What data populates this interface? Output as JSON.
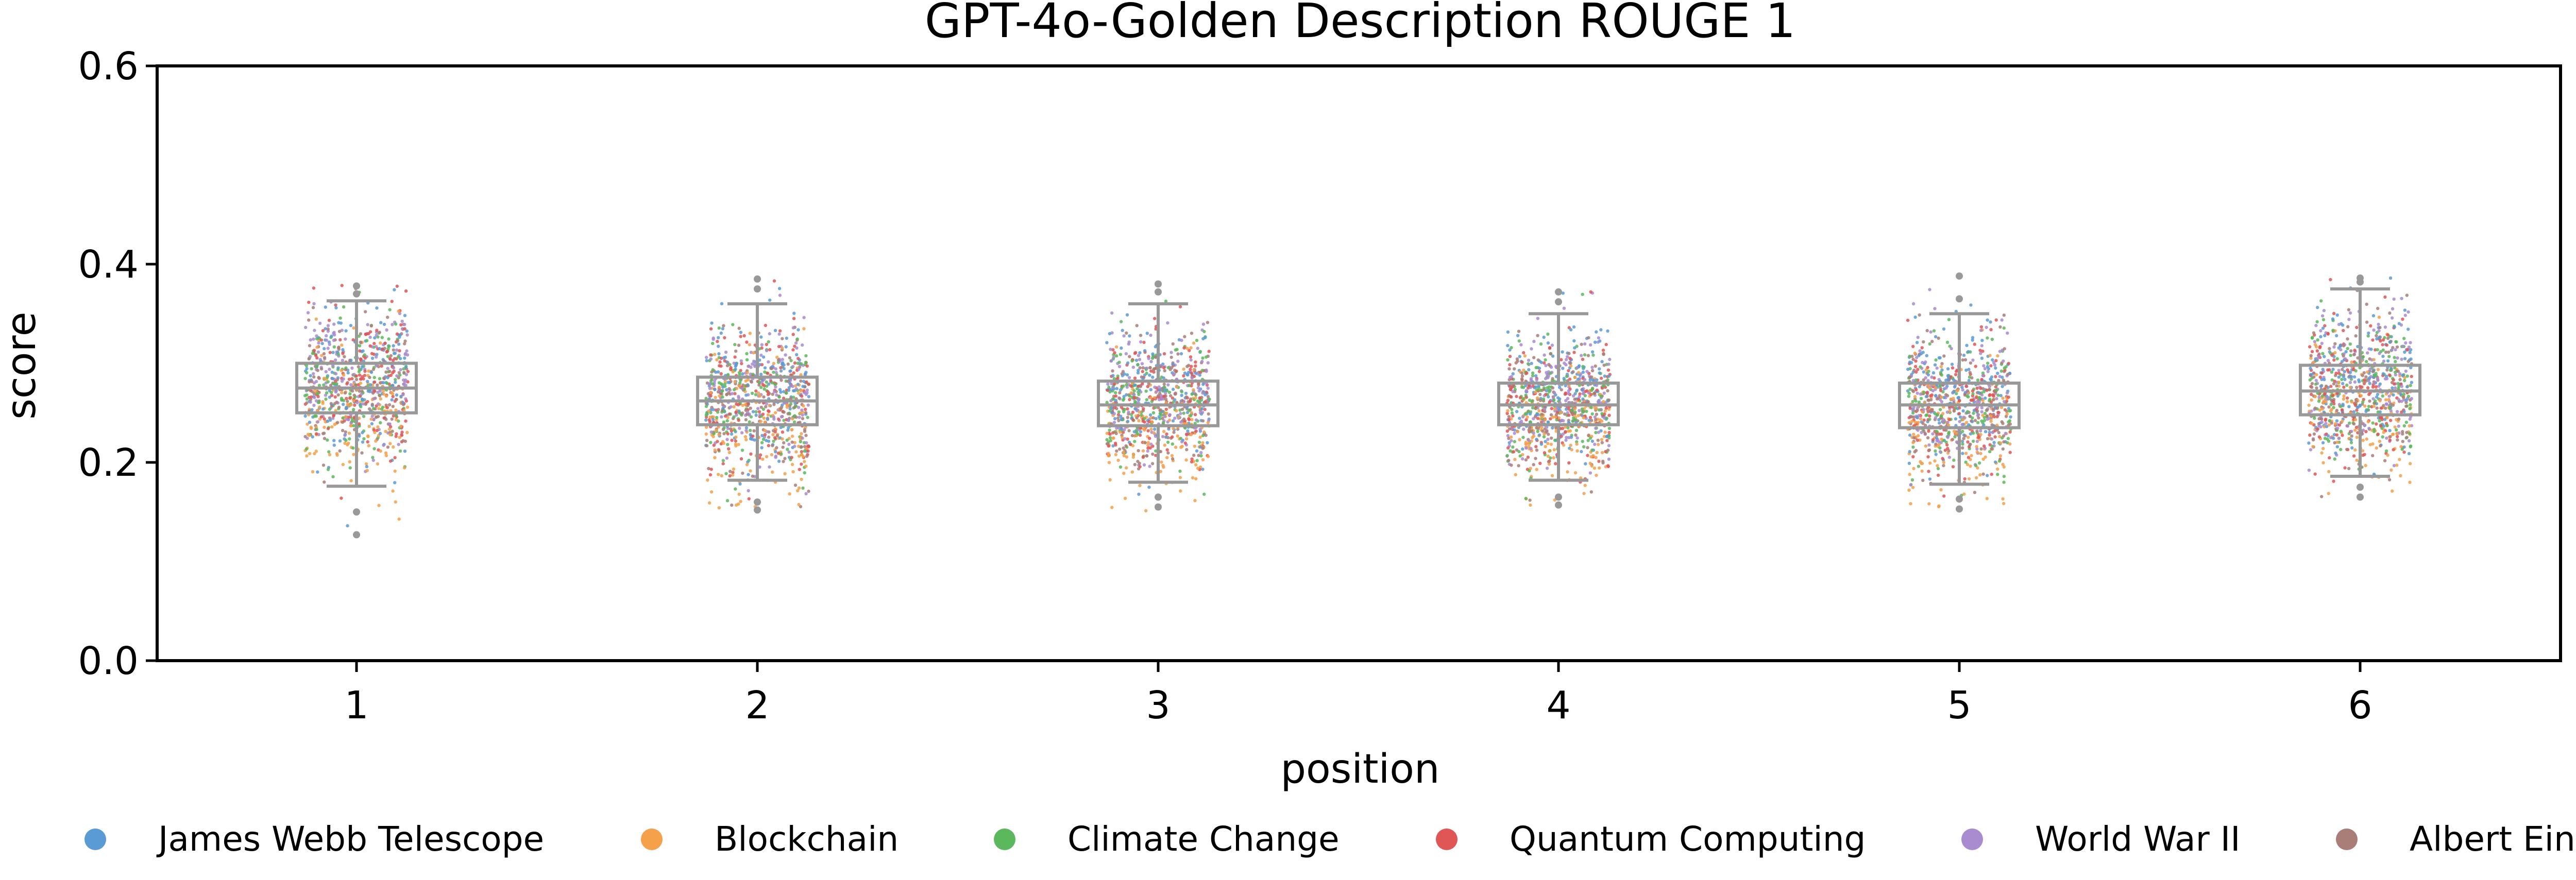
{
  "chart_data": {
    "type": "box-strip",
    "title": "GPT-4o-Golden Description ROUGE 1",
    "xlabel": "position",
    "ylabel": "score",
    "categories": [
      "1",
      "2",
      "3",
      "4",
      "5",
      "6"
    ],
    "ylim": [
      0.0,
      0.6
    ],
    "yticks": [
      "0.0",
      "0.2",
      "0.4",
      "0.6"
    ],
    "grid": false,
    "legend_position": "bottom",
    "series": [
      {
        "name": "James Webb Telescope",
        "color": "#5b9bd5"
      },
      {
        "name": "Blockchain",
        "color": "#f5a04a"
      },
      {
        "name": "Climate Change",
        "color": "#5cb85c"
      },
      {
        "name": "Quantum Computing",
        "color": "#e05555"
      },
      {
        "name": "World War II",
        "color": "#a98bd0"
      },
      {
        "name": "Albert Einstein",
        "color": "#a97e78"
      }
    ],
    "boxes": [
      {
        "position": "1",
        "whisker_low": 0.176,
        "q1": 0.25,
        "median": 0.275,
        "q3": 0.3,
        "whisker_high": 0.363,
        "outliers_low": [
          0.15,
          0.127
        ],
        "outliers_high": [
          0.37,
          0.378
        ],
        "range": [
          0.13,
          0.38
        ]
      },
      {
        "position": "2",
        "whisker_low": 0.182,
        "q1": 0.238,
        "median": 0.262,
        "q3": 0.286,
        "whisker_high": 0.36,
        "outliers_low": [
          0.16,
          0.152
        ],
        "outliers_high": [
          0.375,
          0.385
        ],
        "range": [
          0.15,
          0.385
        ]
      },
      {
        "position": "3",
        "whisker_low": 0.18,
        "q1": 0.237,
        "median": 0.258,
        "q3": 0.282,
        "whisker_high": 0.36,
        "outliers_low": [
          0.165,
          0.155
        ],
        "outliers_high": [
          0.372,
          0.38
        ],
        "range": [
          0.15,
          0.38
        ]
      },
      {
        "position": "4",
        "whisker_low": 0.182,
        "q1": 0.238,
        "median": 0.258,
        "q3": 0.28,
        "whisker_high": 0.35,
        "outliers_low": [
          0.165,
          0.157
        ],
        "outliers_high": [
          0.362,
          0.372
        ],
        "range": [
          0.155,
          0.372
        ]
      },
      {
        "position": "5",
        "whisker_low": 0.178,
        "q1": 0.235,
        "median": 0.258,
        "q3": 0.28,
        "whisker_high": 0.35,
        "outliers_low": [
          0.163,
          0.153
        ],
        "outliers_high": [
          0.365,
          0.388
        ],
        "range": [
          0.15,
          0.39
        ]
      },
      {
        "position": "6",
        "whisker_low": 0.186,
        "q1": 0.248,
        "median": 0.272,
        "q3": 0.298,
        "whisker_high": 0.375,
        "outliers_low": [
          0.175,
          0.165
        ],
        "outliers_high": [
          0.382,
          0.386
        ],
        "range": [
          0.16,
          0.388
        ]
      }
    ]
  }
}
